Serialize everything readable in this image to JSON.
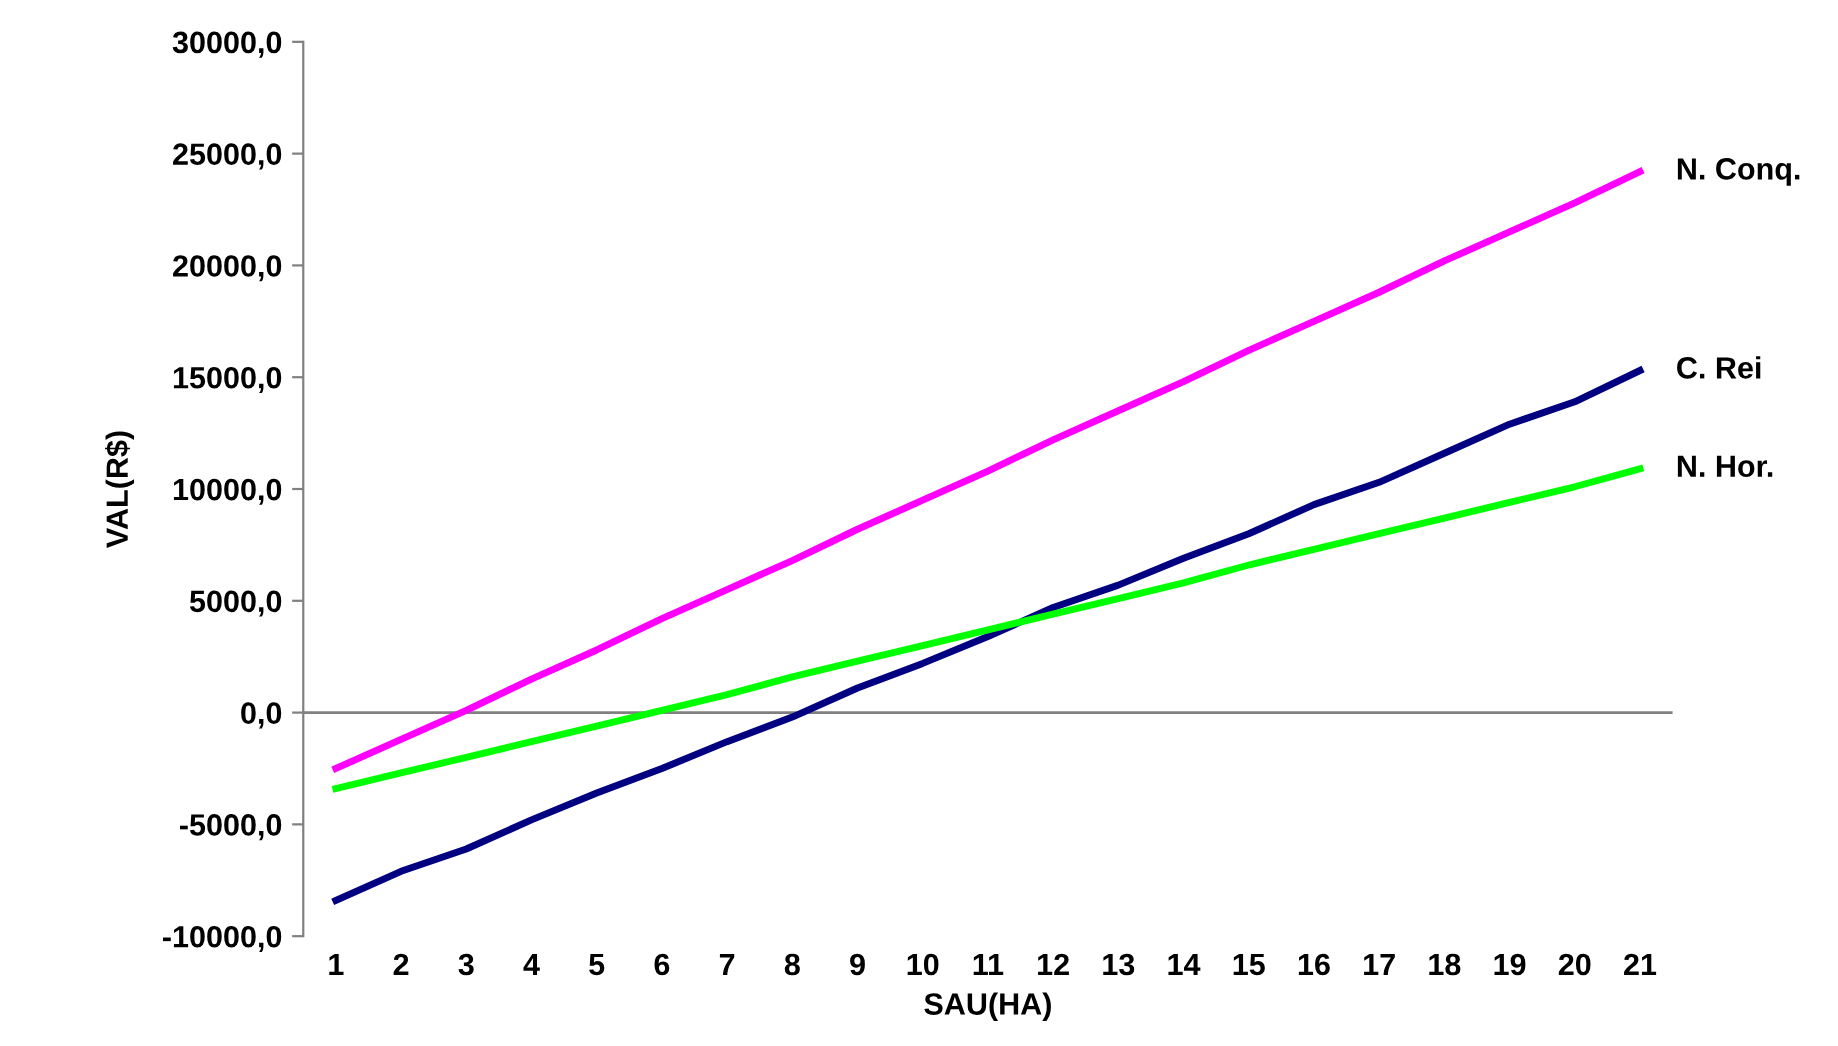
{
  "chart_data": {
    "type": "line",
    "xlabel": "SAU(HA)",
    "ylabel": "VAL(R$)",
    "categories": [
      "1",
      "2",
      "3",
      "4",
      "5",
      "6",
      "7",
      "8",
      "9",
      "10",
      "11",
      "12",
      "13",
      "14",
      "15",
      "16",
      "17",
      "18",
      "19",
      "20",
      "21"
    ],
    "ylim": [
      -10000,
      30000
    ],
    "yticks": [
      {
        "value": -10000,
        "label": "-10000,0"
      },
      {
        "value": -5000,
        "label": "-5000,0"
      },
      {
        "value": 0,
        "label": "0,0"
      },
      {
        "value": 5000,
        "label": "5000,0"
      },
      {
        "value": 10000,
        "label": "10000,0"
      },
      {
        "value": 15000,
        "label": "15000,0"
      },
      {
        "value": 20000,
        "label": "20000,0"
      },
      {
        "value": 25000,
        "label": "25000,0"
      },
      {
        "value": 30000,
        "label": "30000,0"
      }
    ],
    "grid": false,
    "ref_lines": [
      {
        "axis": "y",
        "value": 0,
        "color": "#808080"
      }
    ],
    "legend": false,
    "marker": "none",
    "line_style": "solid",
    "series": [
      {
        "name": "N. Conq.",
        "color": "#ff00ff",
        "values": [
          -2500,
          -1200,
          100,
          1500,
          2800,
          4200,
          5500,
          6800,
          8200,
          9500,
          10800,
          12200,
          13500,
          14800,
          16200,
          17500,
          18800,
          20200,
          21500,
          22800,
          24200
        ]
      },
      {
        "name": "C. Rei",
        "color": "#000080",
        "values": [
          -8400,
          -7100,
          -6100,
          -4800,
          -3600,
          -2500,
          -1300,
          -200,
          1100,
          2200,
          3400,
          4700,
          5700,
          6900,
          8000,
          9300,
          10300,
          11600,
          12900,
          13900,
          15300
        ]
      },
      {
        "name": "N. Hor.",
        "color": "#00ff00",
        "values": [
          -3400,
          -2700,
          -2000,
          -1300,
          -600,
          100,
          800,
          1600,
          2300,
          3000,
          3700,
          4400,
          5100,
          5800,
          6600,
          7300,
          8000,
          8700,
          9400,
          10100,
          10900
        ]
      }
    ]
  }
}
